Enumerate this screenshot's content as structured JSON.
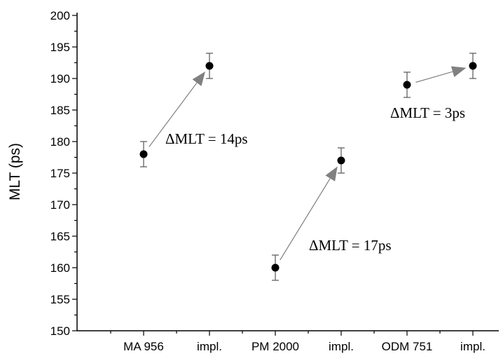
{
  "chart_data": {
    "type": "scatter",
    "title": "",
    "xlabel": "",
    "ylabel": "MLT (ps)",
    "ylim": [
      150,
      200
    ],
    "y_major_step": 5,
    "y_minor_step": 2.5,
    "grid": false,
    "categories": [
      "MA 956",
      "impl.",
      "PM 2000",
      "impl.",
      "ODM 751",
      "impl."
    ],
    "series": [
      {
        "values": [
          178,
          192,
          160,
          177,
          189,
          192
        ],
        "errors": [
          2,
          2,
          2,
          2,
          2,
          2
        ]
      }
    ],
    "annotations": [
      {
        "text": "ΔMLT = 14ps",
        "from": 0,
        "to": 1
      },
      {
        "text": "ΔMLT = 17ps",
        "from": 2,
        "to": 3
      },
      {
        "text": "ΔMLT = 3ps",
        "from": 4,
        "to": 5
      }
    ],
    "colors": {
      "marker": "#000000",
      "errorbar": "#555555",
      "arrow": "#808080",
      "axis": "#000000"
    }
  }
}
